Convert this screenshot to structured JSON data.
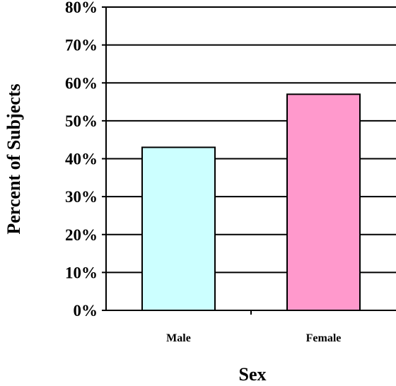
{
  "chart_data": {
    "type": "bar",
    "categories": [
      "Male",
      "Female"
    ],
    "values": [
      43,
      57
    ],
    "xlabel": "Sex",
    "ylabel": "Percent of Subjects",
    "ylim": [
      0,
      80
    ],
    "yticks": [
      0,
      10,
      20,
      30,
      40,
      50,
      60,
      70,
      80
    ],
    "ytick_labels": [
      "0%",
      "10%",
      "20%",
      "30%",
      "40%",
      "50%",
      "60%",
      "70%",
      "80%"
    ],
    "grid": true,
    "legend": "none",
    "colors": [
      "#ccffff",
      "#ff99cc"
    ]
  }
}
